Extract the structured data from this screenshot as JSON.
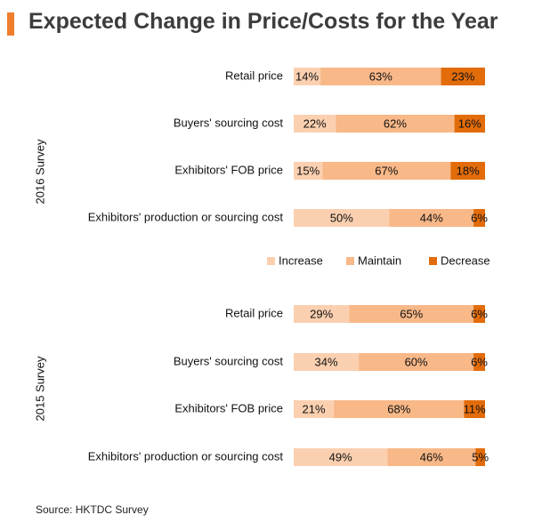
{
  "title": "Expected Change in Price/Costs for the Year",
  "source": "Source: HKTDC Survey",
  "chart_data": {
    "type": "bar",
    "orientation": "horizontal",
    "stacked": true,
    "normalized": true,
    "title": "Expected Change in Price/Costs for the Year",
    "legend_position": "middle",
    "series": [
      {
        "name": "Increase",
        "color": "#fbd0b0"
      },
      {
        "name": "Maintain",
        "color": "#f8b888"
      },
      {
        "name": "Decrease",
        "color": "#e36c0a"
      }
    ],
    "groups": [
      {
        "name": "2016 Survey",
        "categories": [
          "Retail price",
          "Buyers' sourcing cost",
          "Exhibitors' FOB price",
          "Exhibitors' production or sourcing cost"
        ],
        "values": [
          [
            14,
            63,
            23
          ],
          [
            22,
            62,
            16
          ],
          [
            15,
            67,
            18
          ],
          [
            50,
            44,
            6
          ]
        ]
      },
      {
        "name": "2015 Survey",
        "categories": [
          "Retail price",
          "Buyers' sourcing cost",
          "Exhibitors' FOB price",
          "Exhibitors' production or sourcing cost"
        ],
        "values": [
          [
            29,
            65,
            6
          ],
          [
            34,
            60,
            6
          ],
          [
            21,
            68,
            11
          ],
          [
            49,
            46,
            5
          ]
        ]
      }
    ],
    "value_suffix": "%"
  }
}
